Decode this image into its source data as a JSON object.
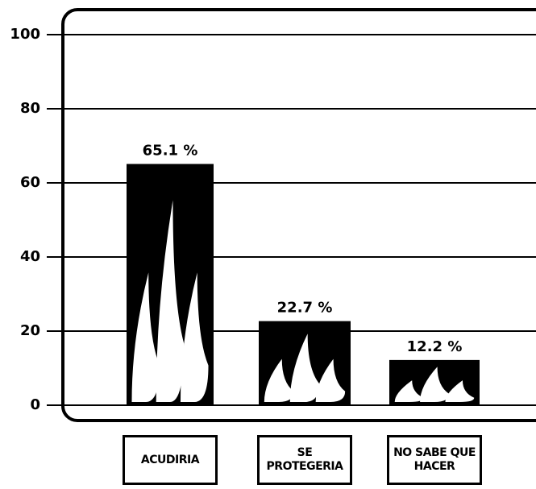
{
  "chart_data": {
    "type": "bar",
    "categories": [
      "ACUDIRIA",
      "SE PROTEGERIA",
      "NO SABE QUE HACER"
    ],
    "values": [
      65.1,
      22.7,
      12.2
    ],
    "value_labels": [
      "65.1 %",
      "22.7 %",
      "12.2 %"
    ],
    "color": "#000000",
    "ylim": [
      0,
      100
    ],
    "yticks": [
      0,
      20,
      40,
      60,
      80,
      100
    ],
    "grid": true
  }
}
